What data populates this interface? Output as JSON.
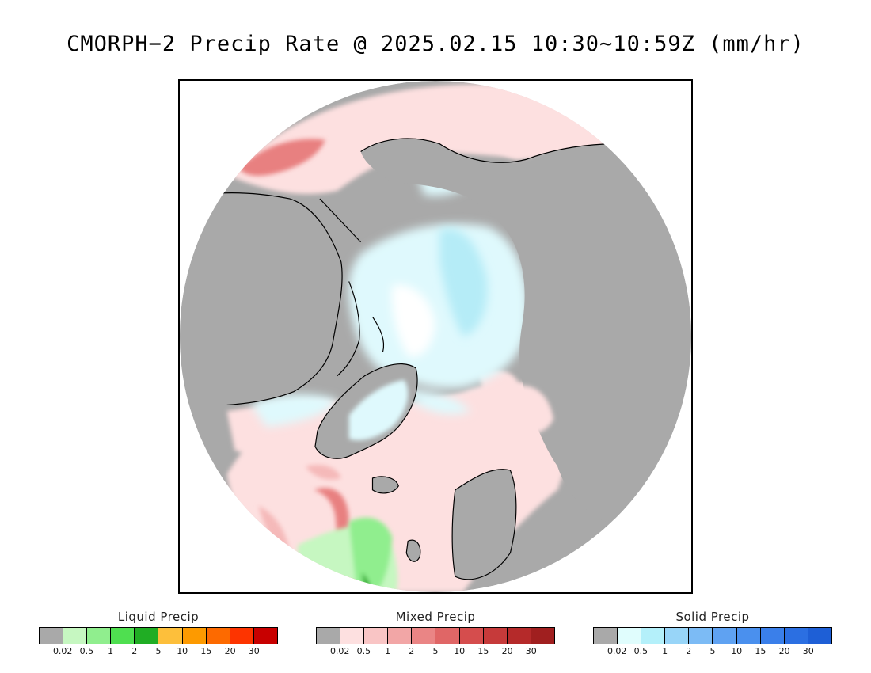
{
  "title": "CMORPH−2 Precip Rate @ 2025.02.15 10:30~10:59Z (mm/hr)",
  "map": {
    "projection": "north-polar-stereographic",
    "colors": {
      "background_no_precip": "#a9a9a9",
      "land_outline": "#000000",
      "mixed_light": "#fde0e0",
      "mixed_mid": "#f5b9b9",
      "mixed_strong": "#e88080",
      "solid_light": "#dff9fd",
      "solid_mid": "#b5ecf7",
      "liquid_light": "#c6f7c1",
      "liquid_mid": "#90ee8e",
      "liquid_strong": "#1ea81a"
    }
  },
  "legends": [
    {
      "name": "Liquid Precip",
      "colors": [
        "#a9a9a9",
        "#c6f7c1",
        "#90ee8e",
        "#4fdf50",
        "#20ad24",
        "#fdbf3b",
        "#fd9a00",
        "#fd6a00",
        "#fd3400",
        "#c80000"
      ],
      "ticks": [
        "0.02",
        "0.5",
        "1",
        "2",
        "5",
        "10",
        "15",
        "20",
        "30"
      ]
    },
    {
      "name": "Mixed Precip",
      "colors": [
        "#a9a9a9",
        "#fde0e0",
        "#f9c5c5",
        "#f2a6a6",
        "#ea8585",
        "#e06666",
        "#d54d4d",
        "#c63a3a",
        "#b52a2a",
        "#a01f1f"
      ],
      "ticks": [
        "0.02",
        "0.5",
        "1",
        "2",
        "5",
        "10",
        "15",
        "20",
        "30"
      ]
    },
    {
      "name": "Solid Precip",
      "colors": [
        "#a9a9a9",
        "#e0fdfd",
        "#b4f0fa",
        "#98d5f8",
        "#7cbbf5",
        "#5fa2f2",
        "#4a90ee",
        "#3a7fea",
        "#2b6fe2",
        "#1e5fd6"
      ],
      "ticks": [
        "0.02",
        "0.5",
        "1",
        "2",
        "5",
        "10",
        "15",
        "20",
        "30"
      ]
    }
  ]
}
